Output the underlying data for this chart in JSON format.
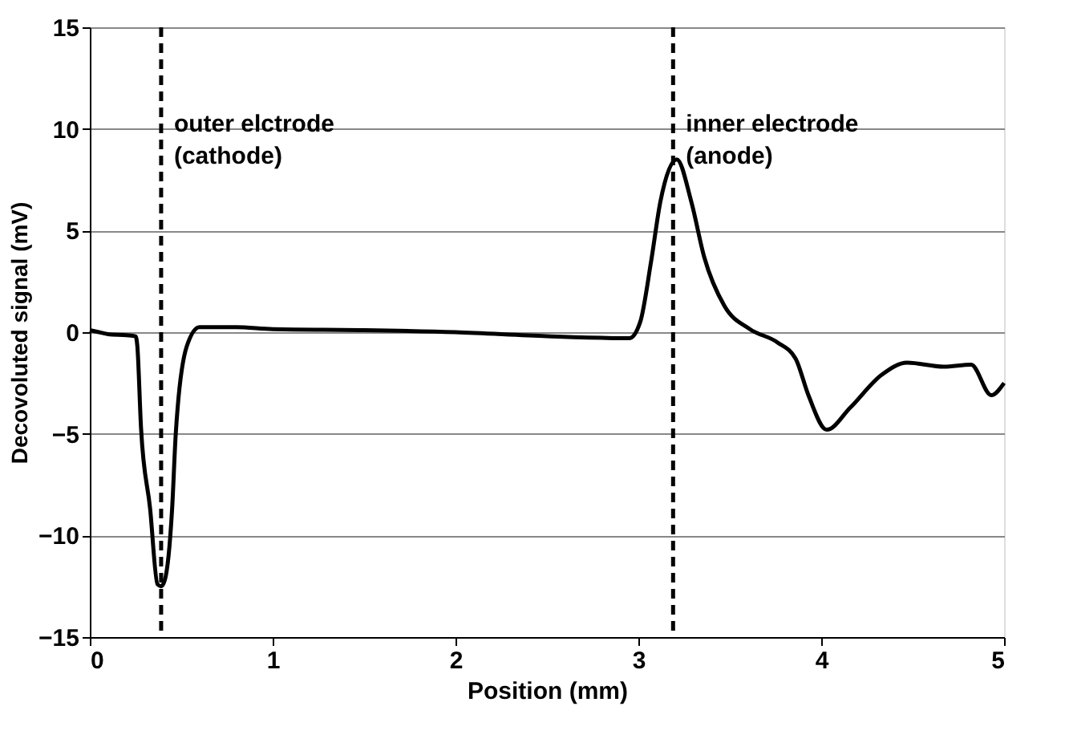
{
  "chart_data": {
    "type": "line",
    "xlabel": "Position (mm)",
    "ylabel": "Decovoluted signal (mV)",
    "x": [
      0,
      0.05,
      0.1,
      0.2,
      0.25,
      0.26,
      0.28,
      0.33,
      0.37,
      0.39,
      0.41,
      0.45,
      0.47,
      0.53,
      0.6,
      0.8,
      1.0,
      1.5,
      2.0,
      2.5,
      2.95,
      3.01,
      3.07,
      3.12,
      3.21,
      3.29,
      3.36,
      3.47,
      3.61,
      3.76,
      3.86,
      3.93,
      4.03,
      4.16,
      4.33,
      4.47,
      4.67,
      4.82,
      4.93,
      5.0
    ],
    "series": [
      {
        "color": "#000000",
        "values": [
          0.1,
          0,
          -0.1,
          -0.15,
          -0.2,
          -0.7,
          -4.7,
          -8.7,
          -12.4,
          -12.5,
          -12.2,
          -8.7,
          -5,
          -0.7,
          0.25,
          0.25,
          0.15,
          0.1,
          0,
          -0.2,
          -0.3,
          0.5,
          3.5,
          6.4,
          8.5,
          6.4,
          3.7,
          1.3,
          0.15,
          -0.5,
          -1.3,
          -3.1,
          -4.8,
          -3.7,
          -2.1,
          -1.5,
          -1.7,
          -1.6,
          -3.1,
          -2.5
        ]
      }
    ],
    "xlim": [
      0,
      5
    ],
    "xticks": [
      0,
      1,
      2,
      3,
      4,
      5
    ],
    "ylim": [
      -15,
      15
    ],
    "yticks": [
      -15,
      -10,
      -5,
      0,
      5,
      10,
      15
    ],
    "grid": "y",
    "ref_lines": [
      {
        "axis": "x",
        "value": 0.39,
        "line_style": "dashed",
        "color": "#000000",
        "label": "outer elctrode\n(cathode)"
      },
      {
        "axis": "x",
        "value": 3.19,
        "line_style": "dashed",
        "color": "#000000",
        "label": "inner electrode\n(anode)"
      }
    ]
  }
}
